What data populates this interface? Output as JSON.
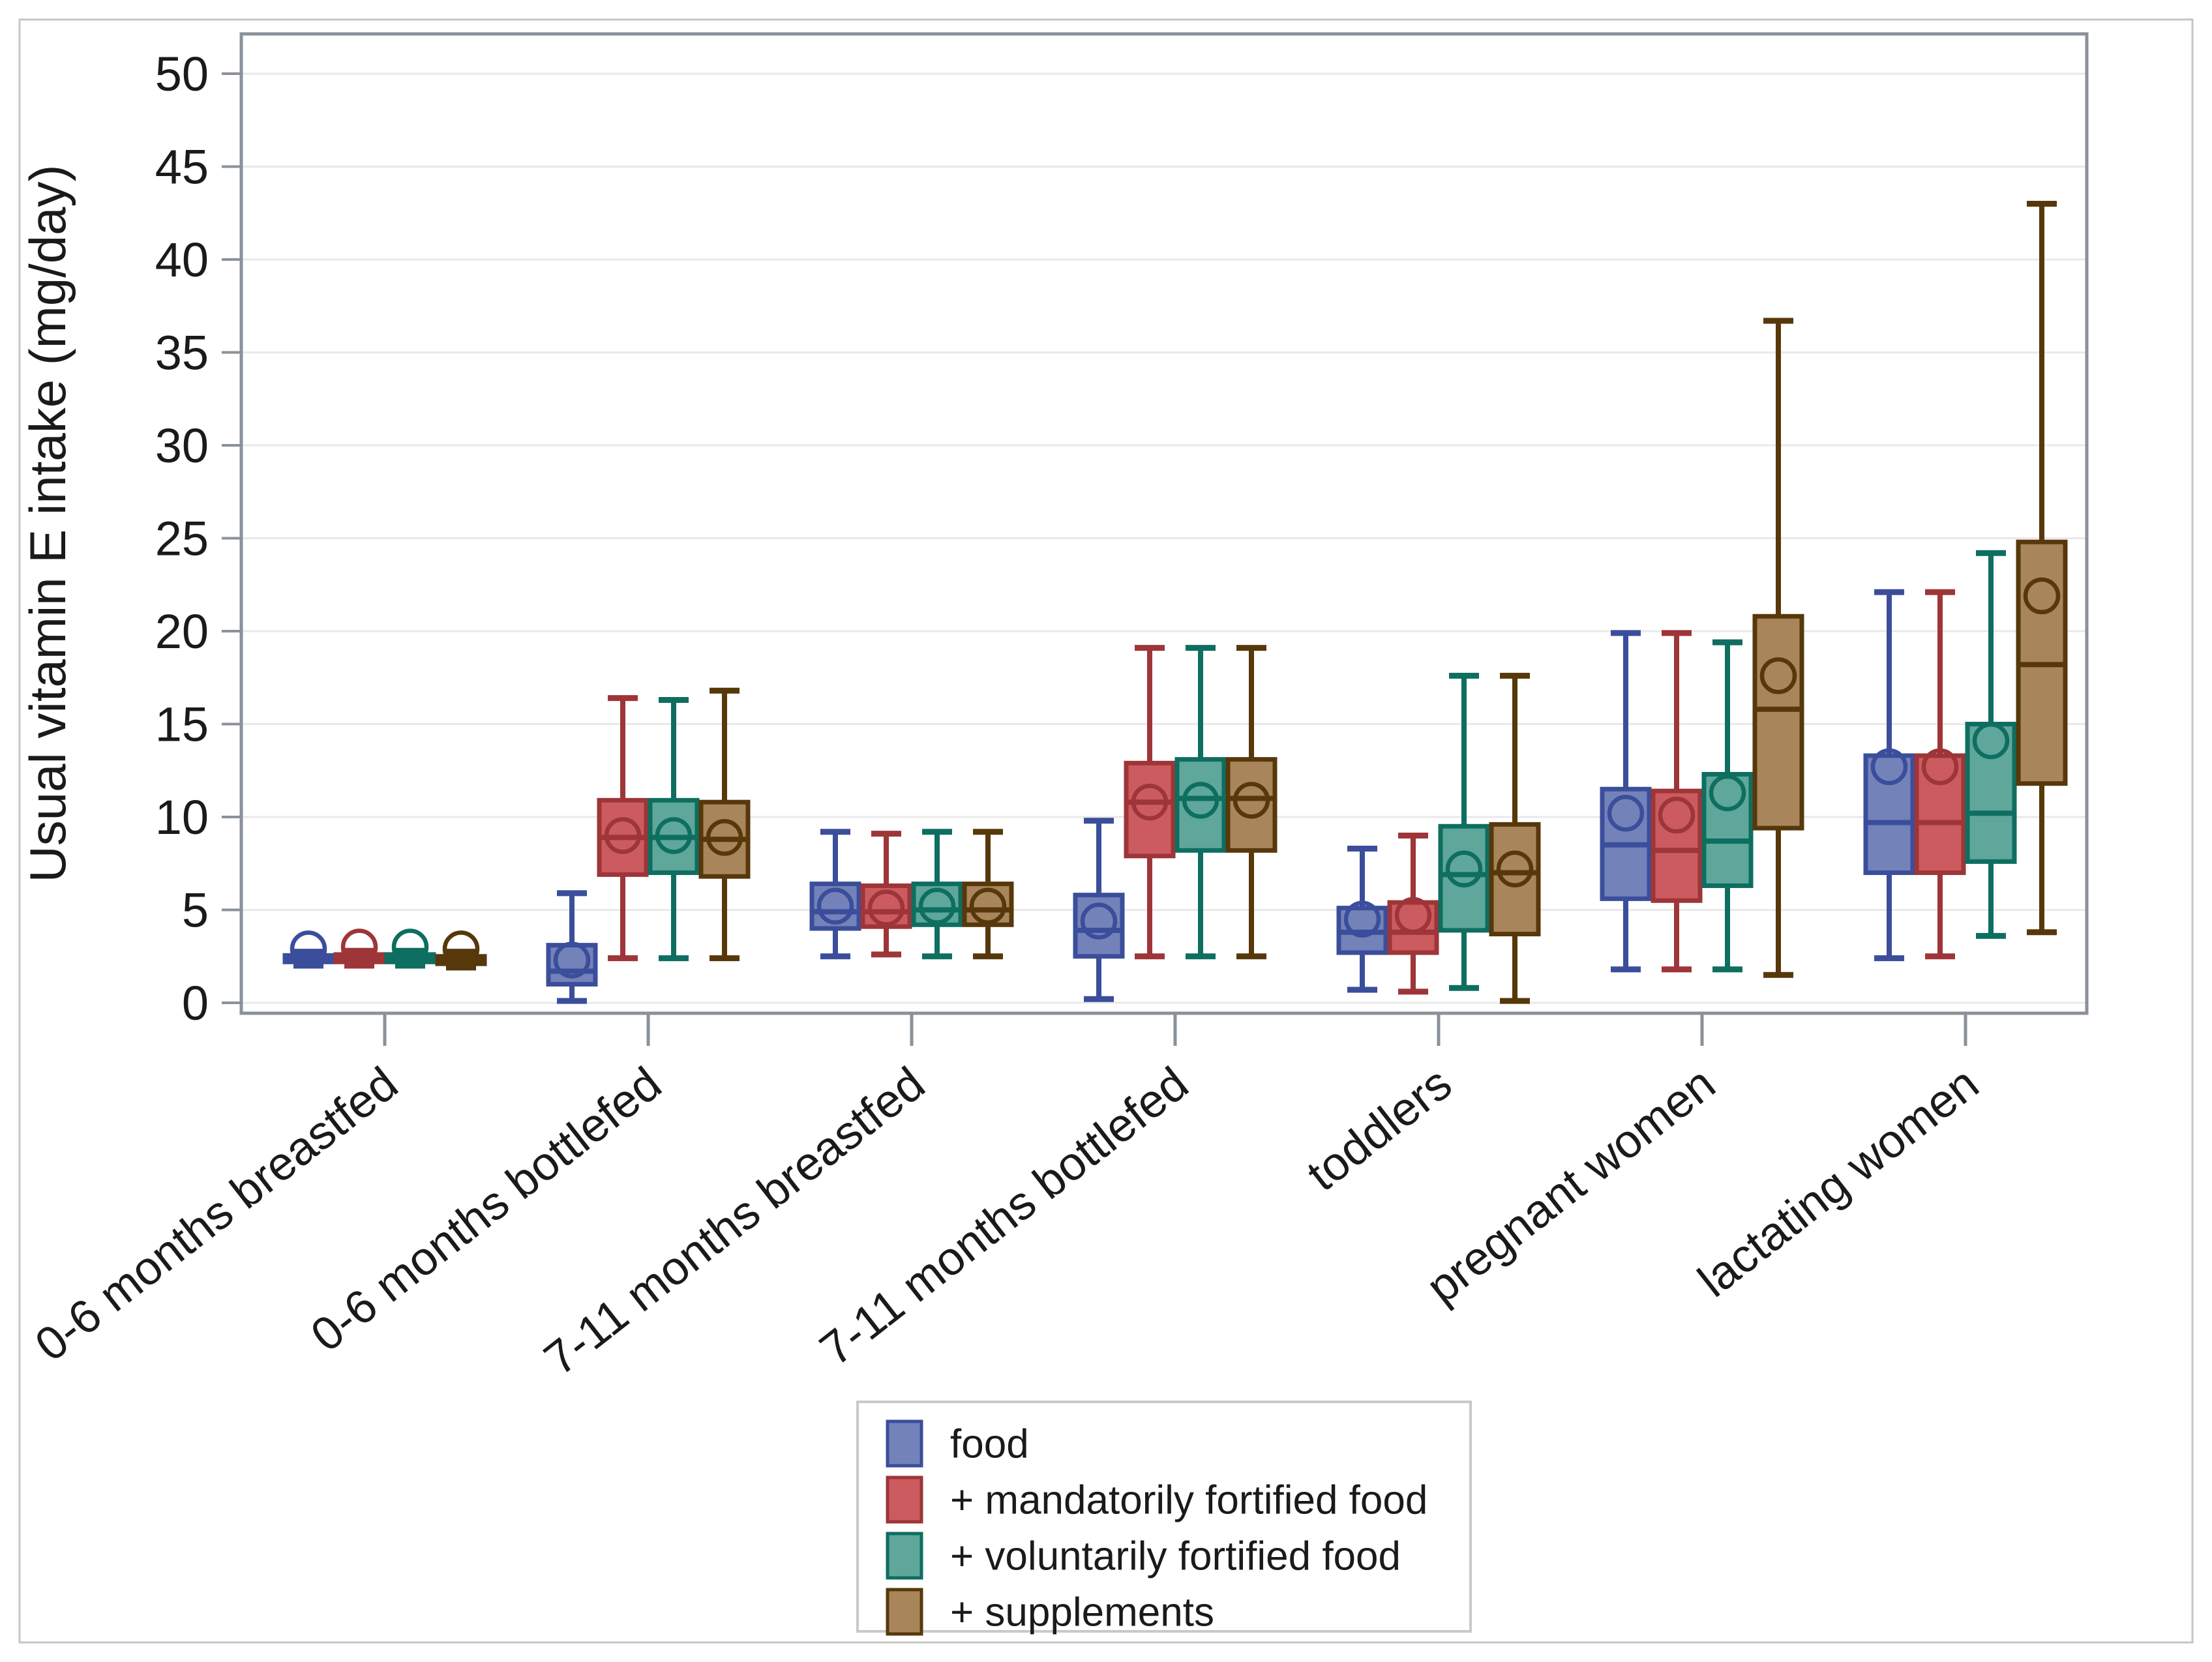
{
  "figure": {
    "background": "#ffffff",
    "outer_border_color": "#c5c5c5"
  },
  "chart_data": {
    "type": "boxplot",
    "title": "",
    "ylabel": "Usual vitamin E intake (mg/day)",
    "xlabel": "",
    "ylim": [
      0,
      50
    ],
    "y_ticks": [
      0,
      5,
      10,
      15,
      20,
      25,
      30,
      35,
      40,
      45,
      50
    ],
    "grid": true,
    "grid_color": "#e9e9e9",
    "axis_color": "#8a9199",
    "legend_position": "bottom-center",
    "categories": [
      "0-6 months breastfed",
      "0-6 months bottlefed",
      "7-11 months breastfed",
      "7-11 months bottlefed",
      "toddlers",
      "pregnant women",
      "lactating women"
    ],
    "stat_order": [
      "whisker_low",
      "q1",
      "median",
      "q3",
      "whisker_high",
      "mean"
    ],
    "series": [
      {
        "name": "food",
        "fill": "#7482BA",
        "stroke": "#3B4E9B",
        "stats": [
          [
            2.0,
            2.2,
            2.35,
            2.55,
            2.75,
            2.9
          ],
          [
            0.1,
            1.0,
            1.7,
            3.1,
            5.9,
            2.3
          ],
          [
            2.5,
            4.0,
            4.9,
            6.4,
            9.2,
            5.2
          ],
          [
            0.2,
            2.5,
            3.9,
            5.8,
            9.8,
            4.4
          ],
          [
            0.7,
            2.7,
            3.8,
            5.1,
            8.3,
            4.5
          ],
          [
            1.8,
            5.6,
            8.5,
            11.5,
            19.9,
            10.2
          ],
          [
            2.4,
            7.0,
            9.7,
            13.3,
            22.1,
            12.7
          ]
        ]
      },
      {
        "name": "+ mandatorily fortified food",
        "fill": "#CB5B5E",
        "stroke": "#9E3538",
        "stats": [
          [
            2.0,
            2.2,
            2.4,
            2.6,
            2.8,
            3.0
          ],
          [
            2.4,
            6.9,
            8.9,
            10.9,
            16.4,
            9.0
          ],
          [
            2.6,
            4.1,
            4.9,
            6.3,
            9.1,
            5.1
          ],
          [
            2.5,
            7.9,
            10.8,
            12.9,
            19.1,
            10.8
          ],
          [
            0.6,
            2.7,
            3.8,
            5.4,
            9.0,
            4.7
          ],
          [
            1.8,
            5.5,
            8.2,
            11.4,
            19.9,
            10.1
          ],
          [
            2.5,
            7.0,
            9.7,
            13.3,
            22.1,
            12.7
          ]
        ]
      },
      {
        "name": "+ voluntarily fortified food",
        "fill": "#5EA79A",
        "stroke": "#0E6E60",
        "stats": [
          [
            2.0,
            2.2,
            2.4,
            2.6,
            2.8,
            3.0
          ],
          [
            2.4,
            7.0,
            8.9,
            10.9,
            16.3,
            9.0
          ],
          [
            2.5,
            4.2,
            5.0,
            6.4,
            9.2,
            5.2
          ],
          [
            2.5,
            8.2,
            11.0,
            13.1,
            19.1,
            10.9
          ],
          [
            0.8,
            3.9,
            6.9,
            9.5,
            17.6,
            7.2
          ],
          [
            1.8,
            6.3,
            8.7,
            12.3,
            19.4,
            11.3
          ],
          [
            3.6,
            7.6,
            10.2,
            15.0,
            24.2,
            14.1
          ]
        ]
      },
      {
        "name": "+ supplements",
        "fill": "#A9855B",
        "stroke": "#57380B",
        "stats": [
          [
            1.9,
            2.1,
            2.3,
            2.5,
            2.75,
            2.9
          ],
          [
            2.4,
            6.8,
            8.8,
            10.8,
            16.8,
            8.9
          ],
          [
            2.5,
            4.2,
            5.0,
            6.4,
            9.2,
            5.2
          ],
          [
            2.5,
            8.2,
            11.0,
            13.1,
            19.1,
            10.9
          ],
          [
            0.1,
            3.7,
            7.0,
            9.6,
            17.6,
            7.2
          ],
          [
            1.5,
            9.4,
            15.8,
            20.8,
            36.7,
            17.6
          ],
          [
            3.8,
            11.8,
            18.2,
            24.8,
            43.0,
            21.9
          ]
        ]
      }
    ]
  }
}
